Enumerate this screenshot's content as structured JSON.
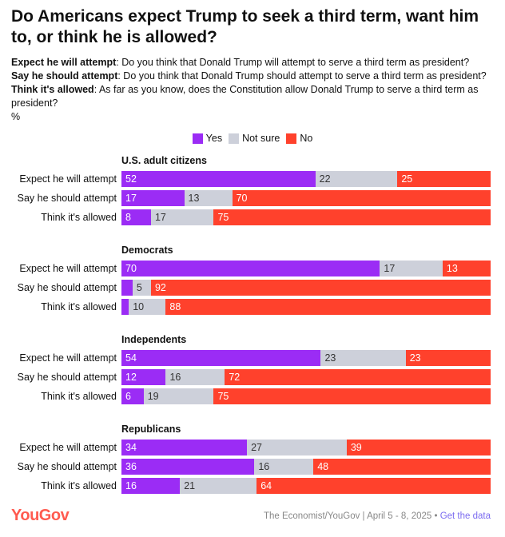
{
  "title": "Do Americans expect Trump to seek a third term, want him to, or think he is allowed?",
  "notes": [
    {
      "term": "Expect he will attempt",
      "text": ": Do you think that Donald Trump will attempt to serve a third term as president?"
    },
    {
      "term": "Say he should attempt",
      "text": ": Do you think that Donald Trump should attempt to serve a third term as president?"
    },
    {
      "term": "Think it's allowed",
      "text": ": As far as you know, does the Constitution allow Donald Trump to serve a third term as president?"
    }
  ],
  "unit": "%",
  "colors": {
    "Yes": "#9b2cf5",
    "Not sure": "#cdd0da",
    "No": "#ff412c"
  },
  "footer": {
    "logo": "YouGov",
    "source": "The Economist/YouGov | April 5 - 8, 2025 • ",
    "link": "Get the data"
  },
  "chart_data": {
    "type": "bar",
    "stacked": true,
    "orientation": "horizontal",
    "xlim": [
      0,
      100
    ],
    "legend": [
      "Yes",
      "Not sure",
      "No"
    ],
    "legend_position": "top",
    "categories": [
      "Expect he will attempt",
      "Say he should attempt",
      "Think it's allowed"
    ],
    "groups": [
      {
        "name": "U.S. adult citizens",
        "rows": [
          [
            52,
            22,
            25
          ],
          [
            17,
            13,
            70
          ],
          [
            8,
            17,
            75
          ]
        ]
      },
      {
        "name": "Democrats",
        "rows": [
          [
            70,
            17,
            13
          ],
          [
            3,
            5,
            92
          ],
          [
            2,
            10,
            88
          ]
        ]
      },
      {
        "name": "Independents",
        "rows": [
          [
            54,
            23,
            23
          ],
          [
            12,
            16,
            72
          ],
          [
            6,
            19,
            75
          ]
        ]
      },
      {
        "name": "Republicans",
        "rows": [
          [
            34,
            27,
            39
          ],
          [
            36,
            16,
            48
          ],
          [
            16,
            21,
            64
          ]
        ]
      }
    ]
  }
}
